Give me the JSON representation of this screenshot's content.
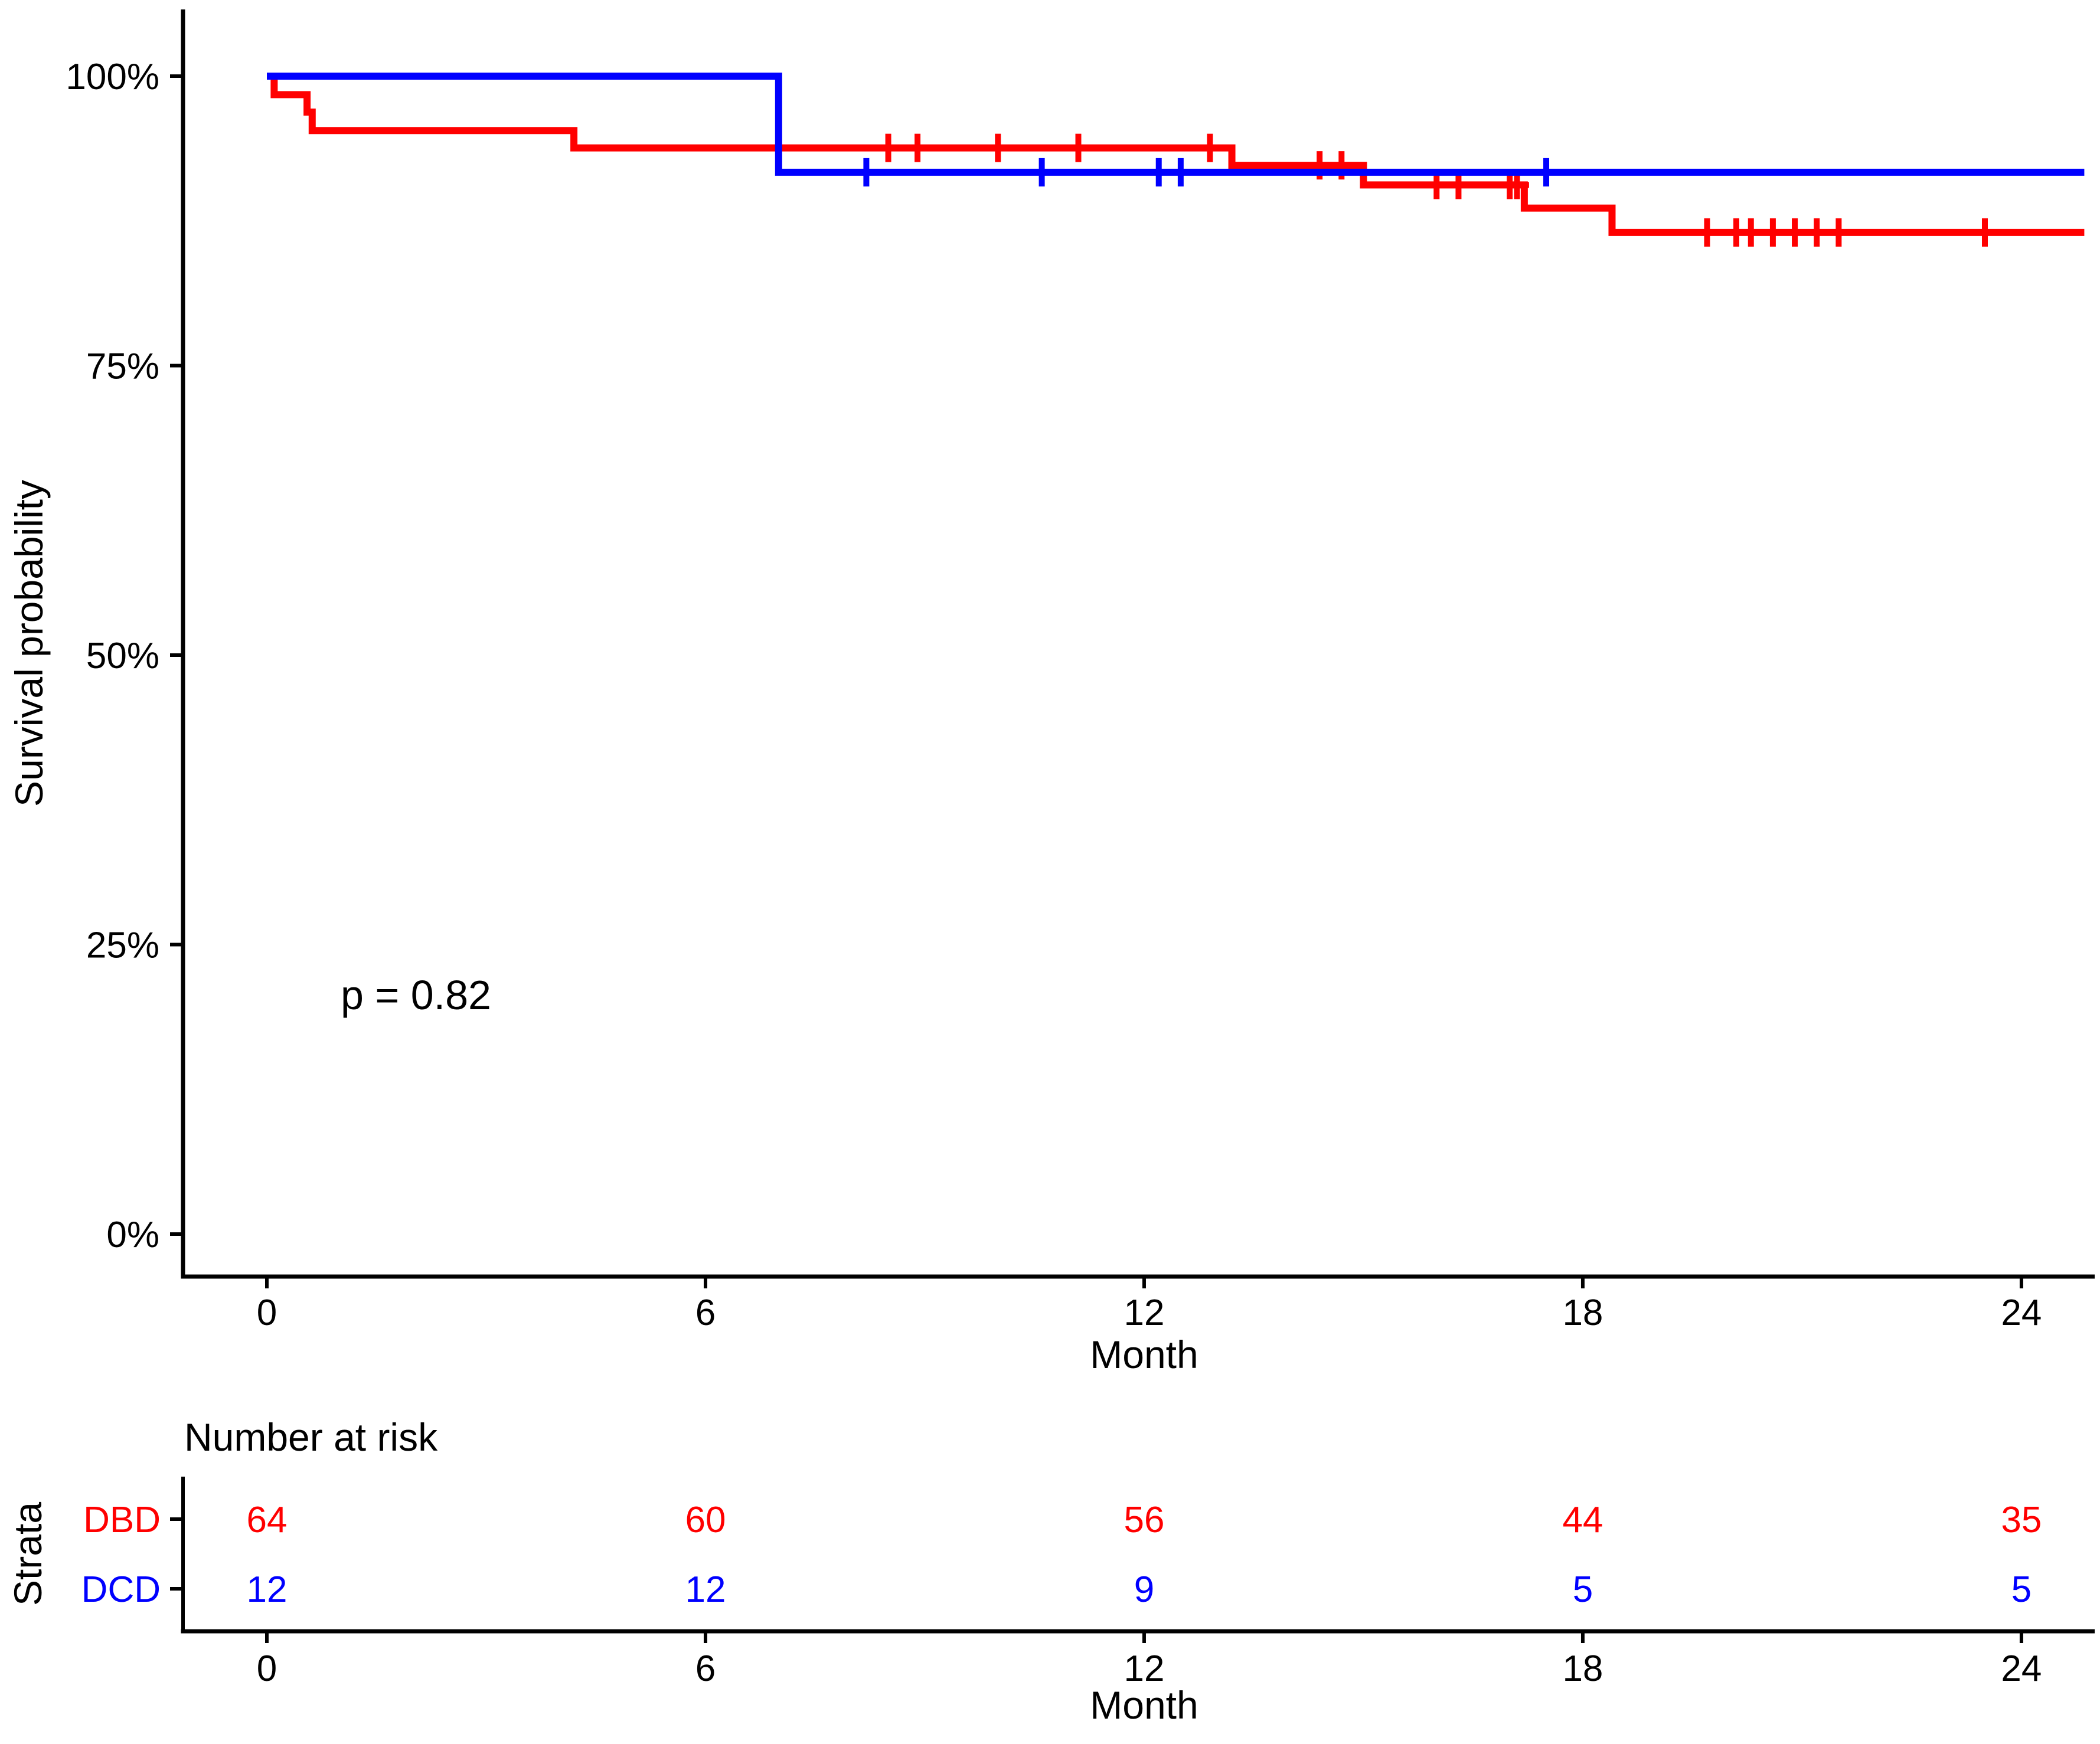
{
  "figure": {
    "background_color": "#FFFFFF",
    "axis_color": "#000000"
  },
  "chart_data": {
    "type": "line",
    "subtype": "kaplan-meier-step-curves",
    "title": "",
    "xlabel": "Month",
    "ylabel": "Survival probability",
    "grid": false,
    "legend_position": "none",
    "xlim_months": [
      0,
      25
    ],
    "ylim_percent": [
      0,
      100
    ],
    "x_ticks": [
      0,
      6,
      12,
      18,
      24
    ],
    "y_ticks": [
      {
        "label": "100%",
        "value": 100
      },
      {
        "label": "75%",
        "value": 75
      },
      {
        "label": "50%",
        "value": 50
      },
      {
        "label": "25%",
        "value": 25
      },
      {
        "label": "0%",
        "value": 0
      }
    ],
    "annotation": {
      "text": "p = 0.82"
    },
    "series": [
      {
        "name": "DBD",
        "color": "#FF0000",
        "steps_month_percent": [
          [
            0,
            100
          ],
          [
            0.1,
            98.4
          ],
          [
            0.55,
            96.9
          ],
          [
            0.62,
            95.3
          ],
          [
            4.2,
            93.8
          ],
          [
            13.2,
            92.3
          ],
          [
            15.0,
            90.6
          ],
          [
            17.2,
            88.6
          ],
          [
            18.4,
            86.5
          ]
        ],
        "end_month": 24.86,
        "censor_marks_month_percent": [
          [
            8.5,
            93.8
          ],
          [
            8.9,
            93.8
          ],
          [
            10.0,
            93.8
          ],
          [
            11.1,
            93.8
          ],
          [
            12.9,
            93.8
          ],
          [
            14.4,
            92.3
          ],
          [
            14.7,
            92.3
          ],
          [
            16.0,
            90.6
          ],
          [
            16.3,
            90.6
          ],
          [
            17.0,
            90.6
          ],
          [
            17.1,
            90.6
          ],
          [
            19.7,
            86.5
          ],
          [
            20.1,
            86.5
          ],
          [
            20.3,
            86.5
          ],
          [
            20.6,
            86.5
          ],
          [
            20.9,
            86.5
          ],
          [
            21.2,
            86.5
          ],
          [
            21.5,
            86.5
          ],
          [
            23.5,
            86.5
          ]
        ]
      },
      {
        "name": "DCD",
        "color": "#0000FF",
        "steps_month_percent": [
          [
            0,
            100
          ],
          [
            7.0,
            91.7
          ]
        ],
        "end_month": 24.86,
        "censor_marks_month_percent": [
          [
            8.2,
            91.7
          ],
          [
            10.6,
            91.7
          ],
          [
            12.2,
            91.7
          ],
          [
            12.5,
            91.7
          ],
          [
            17.5,
            91.7
          ]
        ]
      }
    ],
    "risk_table": {
      "title": "Number at risk",
      "y_axis_label": "Strata",
      "xlabel": "Month",
      "x_ticks": [
        0,
        6,
        12,
        18,
        24
      ],
      "rows": [
        {
          "label": "DBD",
          "color": "#FF0000",
          "values": [
            64,
            60,
            56,
            44,
            35
          ]
        },
        {
          "label": "DCD",
          "color": "#0000FF",
          "values": [
            12,
            12,
            9,
            5,
            5
          ]
        }
      ]
    }
  }
}
